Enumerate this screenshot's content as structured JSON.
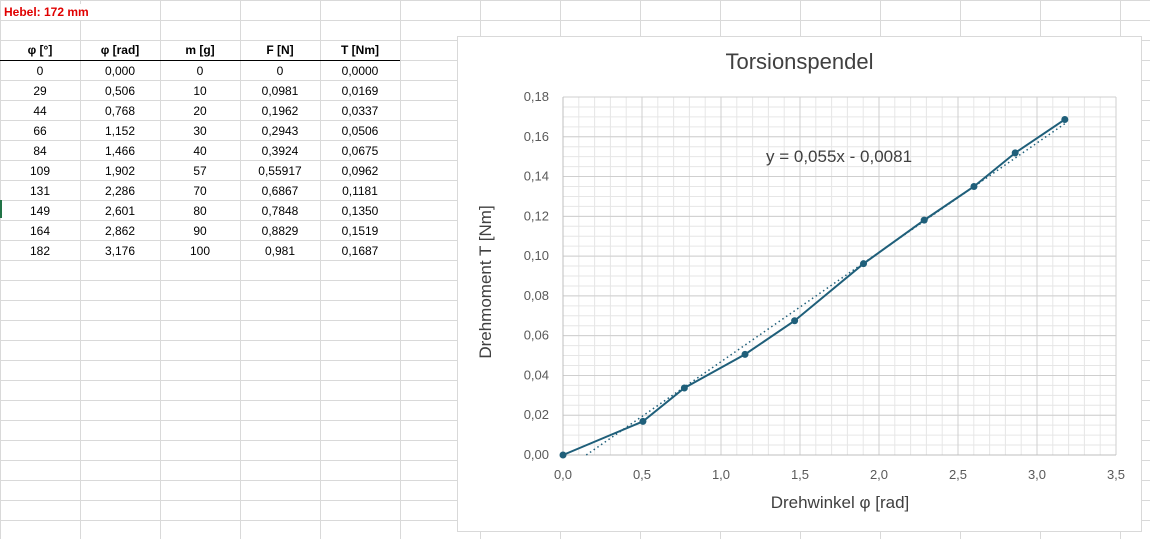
{
  "sheet": {
    "title": "Hebel: 172 mm",
    "headers": [
      "φ [°]",
      "φ [rad]",
      "m [g]",
      "F [N]",
      "T [Nm]"
    ],
    "rows": [
      [
        "0",
        "0,000",
        "0",
        "0",
        "0,0000"
      ],
      [
        "29",
        "0,506",
        "10",
        "0,0981",
        "0,0169"
      ],
      [
        "44",
        "0,768",
        "20",
        "0,1962",
        "0,0337"
      ],
      [
        "66",
        "1,152",
        "30",
        "0,2943",
        "0,0506"
      ],
      [
        "84",
        "1,466",
        "40",
        "0,3924",
        "0,0675"
      ],
      [
        "109",
        "1,902",
        "57",
        "0,55917",
        "0,0962"
      ],
      [
        "131",
        "2,286",
        "70",
        "0,6867",
        "0,1181"
      ],
      [
        "149",
        "2,601",
        "80",
        "0,7848",
        "0,1350"
      ],
      [
        "164",
        "2,862",
        "90",
        "0,8829",
        "0,1519"
      ],
      [
        "182",
        "3,176",
        "100",
        "0,981",
        "0,1687"
      ]
    ]
  },
  "chart_data": {
    "type": "scatter",
    "title": "Torsionspendel",
    "xlabel": "Drehwinkel φ [rad]",
    "ylabel": "Drehmoment T [Nm]",
    "trendline_label": "y = 0,055x - 0,0081",
    "trendline": {
      "slope": 0.055,
      "intercept": -0.0081
    },
    "xlim": [
      0,
      3.5
    ],
    "ylim": [
      0,
      0.18
    ],
    "x_ticks": [
      "0,0",
      "0,5",
      "1,0",
      "1,5",
      "2,0",
      "2,5",
      "3,0",
      "3,5"
    ],
    "y_ticks": [
      "0,00",
      "0,02",
      "0,04",
      "0,06",
      "0,08",
      "0,10",
      "0,12",
      "0,14",
      "0,16",
      "0,18"
    ],
    "grid": true,
    "series": [
      {
        "x": [
          0.0,
          0.506,
          0.768,
          1.152,
          1.466,
          1.902,
          2.286,
          2.601,
          2.862,
          3.176
        ],
        "y": [
          0.0,
          0.0169,
          0.0337,
          0.0506,
          0.0675,
          0.0962,
          0.1181,
          0.135,
          0.1519,
          0.1687
        ]
      }
    ],
    "colors": {
      "series": "#1f5f7a",
      "grid": "#e6e6e6",
      "axis": "#bfbfbf"
    }
  }
}
